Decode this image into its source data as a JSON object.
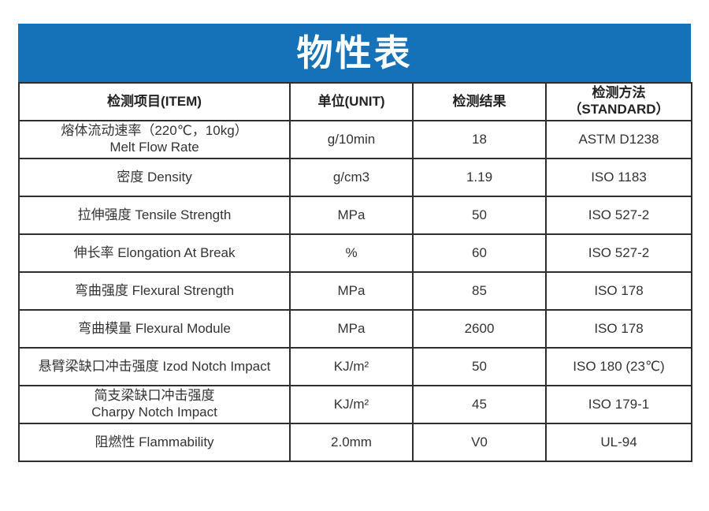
{
  "title": "物性表",
  "colors": {
    "banner": "#1572b8",
    "border": "#2e2e2e",
    "text": "#333333",
    "title_text": "#ffffff"
  },
  "table": {
    "headers": [
      "检测项目(ITEM)",
      "单位(UNIT)",
      "检测结果",
      "检测方法\n（STANDARD）"
    ],
    "rows": [
      {
        "item": "熔体流动速率（220℃，10kg）\nMelt Flow Rate",
        "unit": "g/10min",
        "result": "18",
        "standard": "ASTM D1238"
      },
      {
        "item": "密度 Density",
        "unit": "g/cm3",
        "result": "1.19",
        "standard": "ISO 1183"
      },
      {
        "item": "拉伸强度 Tensile Strength",
        "unit": "MPa",
        "result": "50",
        "standard": "ISO 527-2"
      },
      {
        "item": "伸长率 Elongation At Break",
        "unit": "%",
        "result": "60",
        "standard": "ISO 527-2"
      },
      {
        "item": "弯曲强度 Flexural Strength",
        "unit": "MPa",
        "result": "85",
        "standard": "ISO 178"
      },
      {
        "item": "弯曲模量 Flexural Module",
        "unit": "MPa",
        "result": "2600",
        "standard": "ISO 178"
      },
      {
        "item": "悬臂梁缺口冲击强度 Izod Notch Impact",
        "unit": "KJ/m²",
        "result": "50",
        "standard": "ISO 180 (23℃)"
      },
      {
        "item": "简支梁缺口冲击强度\nCharpy Notch Impact",
        "unit": "KJ/m²",
        "result": "45",
        "standard": "ISO 179-1"
      },
      {
        "item": "阻燃性 Flammability",
        "unit": "2.0mm",
        "result": "V0",
        "standard": "UL-94"
      }
    ]
  }
}
